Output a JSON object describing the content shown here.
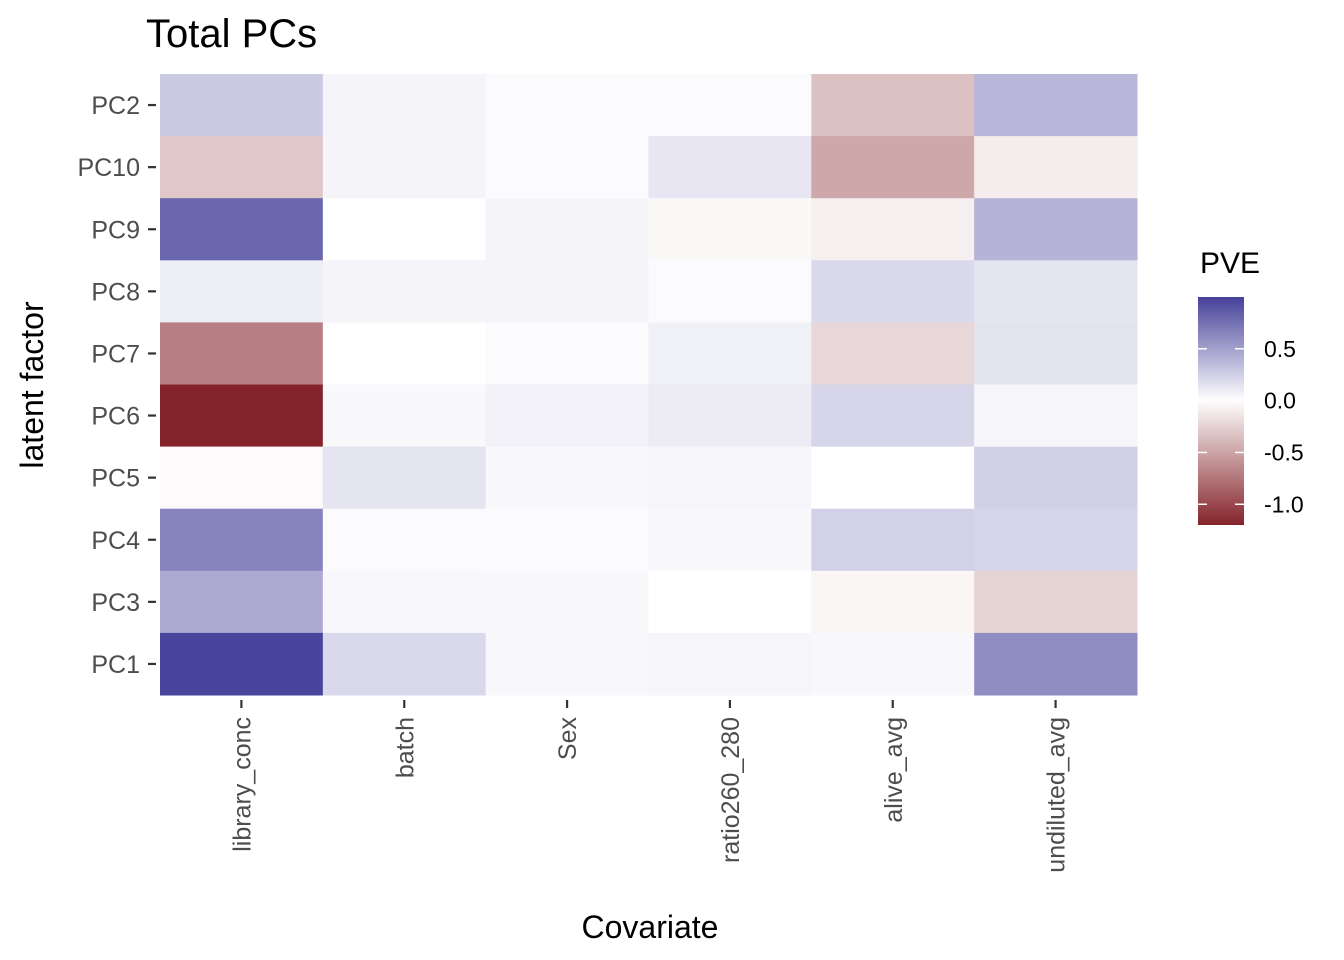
{
  "chart_data": {
    "type": "heatmap",
    "title": "Total PCs",
    "xlabel": "Covariate",
    "ylabel": "latent factor",
    "x_categories": [
      "library_conc",
      "batch",
      "Sex",
      "ratio260_280",
      "alive_avg",
      "undiluted_avg"
    ],
    "y_categories": [
      "PC2",
      "PC10",
      "PC9",
      "PC8",
      "PC7",
      "PC6",
      "PC5",
      "PC4",
      "PC3",
      "PC1"
    ],
    "values": [
      [
        0.28,
        0.06,
        0.02,
        0.02,
        -0.34,
        0.38
      ],
      [
        -0.3,
        0.06,
        0.02,
        0.13,
        -0.48,
        -0.1
      ],
      [
        0.8,
        0.0,
        0.06,
        -0.04,
        -0.09,
        0.4
      ],
      [
        0.09,
        0.06,
        0.06,
        0.02,
        0.2,
        0.14
      ],
      [
        -0.7,
        0.0,
        0.02,
        0.08,
        -0.22,
        0.15
      ],
      [
        -1.2,
        0.03,
        0.07,
        0.1,
        0.22,
        0.05
      ],
      [
        -0.03,
        0.14,
        0.03,
        0.05,
        0.0,
        0.25
      ],
      [
        0.65,
        0.02,
        0.02,
        0.04,
        0.24,
        0.22
      ],
      [
        0.45,
        0.04,
        0.03,
        0.0,
        -0.05,
        -0.24
      ],
      [
        0.98,
        0.2,
        0.04,
        0.05,
        0.04,
        0.6
      ]
    ],
    "legend": {
      "title": "PVE",
      "ticks": [
        0.5,
        0.0,
        -0.5,
        -1.0
      ],
      "tick_labels": [
        "0.5",
        "0.0",
        "-0.5",
        "-1.0"
      ],
      "range": [
        -1.2,
        1.0
      ],
      "placement": "right"
    },
    "colors": {
      "low": "#84242a",
      "mid": "#ffffff",
      "high": "#46419a"
    },
    "grid": false
  }
}
